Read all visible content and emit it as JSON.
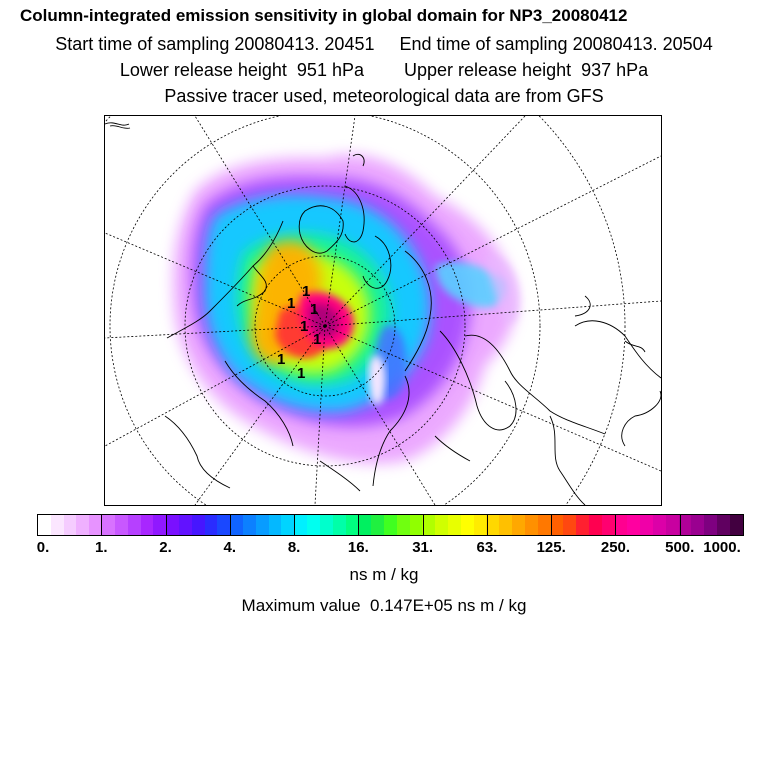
{
  "header": {
    "title": "Column-integrated emission sensitivity in global domain for NP3_20080412",
    "sampling": "Start time of sampling 20080413. 20451     End time of sampling 20080413. 20504",
    "release": "Lower release height  951 hPa        Upper release height  937 hPa",
    "note": "Passive tracer used, meteorological data are from GFS"
  },
  "map": {
    "contour_labels": [
      "1",
      "1",
      "1",
      "1",
      "1",
      "1",
      "1"
    ]
  },
  "legend": {
    "ticks": [
      "0.",
      "1.",
      "2.",
      "4.",
      "8.",
      "16.",
      "31.",
      "63.",
      "125.",
      "250.",
      "500.",
      "1000."
    ],
    "colors": [
      "#ffffff",
      "#fbe6ff",
      "#f5ccff",
      "#efb0ff",
      "#e793ff",
      "#d872ff",
      "#c858ff",
      "#b640ff",
      "#a826ff",
      "#9018ff",
      "#7a10ff",
      "#6212ff",
      "#4616ff",
      "#2a2cff",
      "#1a48ff",
      "#1064ff",
      "#0c80ff",
      "#089cff",
      "#04b8ff",
      "#00d4ff",
      "#00f0ff",
      "#00fff0",
      "#00ffcc",
      "#00ffa8",
      "#00ff80",
      "#00f060",
      "#20f040",
      "#40ff20",
      "#70ff10",
      "#90ff00",
      "#b0ff00",
      "#d0ff00",
      "#e8ff00",
      "#ffff00",
      "#ffec00",
      "#ffd800",
      "#ffc000",
      "#ffa800",
      "#ff9000",
      "#ff7800",
      "#ff6000",
      "#ff4810",
      "#ff2030",
      "#ff0050",
      "#ff0070",
      "#ff0090",
      "#ff00a0",
      "#f000a8",
      "#dc00a8",
      "#c800a0",
      "#b00098",
      "#9a0090",
      "#7e0080",
      "#600060",
      "#420040"
    ],
    "units": "ns m / kg",
    "max_value": "Maximum value  0.147E+05 ns m / kg"
  }
}
